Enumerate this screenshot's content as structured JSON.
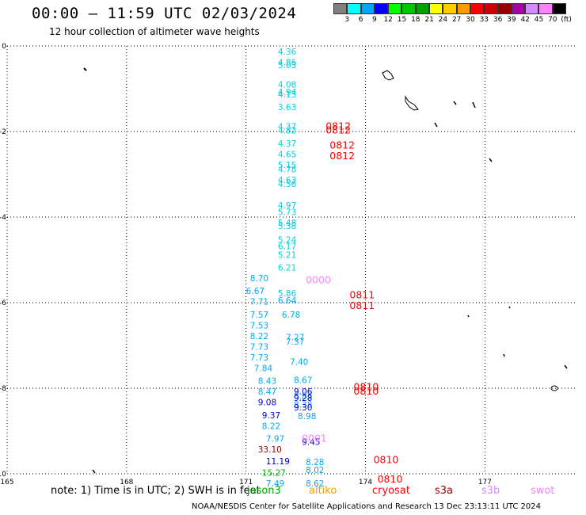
{
  "header": {
    "title": "00:00 – 11:59 UTC 02/03/2024",
    "subtitle": "12 hour collection of altimeter wave heights"
  },
  "color_scale": {
    "colors": [
      "#808080",
      "#00ffff",
      "#00a8ff",
      "#0000ff",
      "#00ff00",
      "#00c800",
      "#00a000",
      "#ffff00",
      "#ffcc00",
      "#ff9900",
      "#ff0000",
      "#cc0000",
      "#990000",
      "#aa00aa",
      "#d28cff",
      "#ff80ff",
      "#000000"
    ],
    "labels": [
      "3",
      "6",
      "9",
      "12",
      "15",
      "18",
      "21",
      "24",
      "27",
      "30",
      "33",
      "36",
      "39",
      "42",
      "45",
      "70",
      "(ft)"
    ]
  },
  "axes": {
    "x_ticks": [
      "165",
      "168",
      "171",
      "174",
      "177"
    ],
    "y_ticks": [
      "0",
      "-2",
      "-4",
      "-6",
      "-8",
      "-10"
    ]
  },
  "chart_data": {
    "type": "scatter",
    "x_range": [
      165,
      179.3
    ],
    "y_range": [
      -10,
      0
    ],
    "points": [
      {
        "lon": 171.8,
        "lat": -0.2,
        "label": "4.36",
        "color": "#00d0e0"
      },
      {
        "lon": 171.8,
        "lat": -0.45,
        "label": "4.86",
        "color": "#00d0e0"
      },
      {
        "lon": 171.8,
        "lat": -0.52,
        "label": "5.03",
        "color": "#00d0e0"
      },
      {
        "lon": 171.8,
        "lat": -0.97,
        "label": "4.08",
        "color": "#00d0e0"
      },
      {
        "lon": 171.8,
        "lat": -1.15,
        "label": "4.94",
        "color": "#00d0e0"
      },
      {
        "lon": 171.8,
        "lat": -1.2,
        "label": "4.13",
        "color": "#00d0e0"
      },
      {
        "lon": 171.8,
        "lat": -1.5,
        "label": "3.63",
        "color": "#00d0e0"
      },
      {
        "lon": 171.8,
        "lat": -1.95,
        "label": "4.37",
        "color": "#00d0e0"
      },
      {
        "lon": 171.8,
        "lat": -2.05,
        "label": "4.82",
        "color": "#00d0e0"
      },
      {
        "lon": 171.8,
        "lat": -2.35,
        "label": "4.37",
        "color": "#00d0e0"
      },
      {
        "lon": 171.8,
        "lat": -2.6,
        "label": "4.65",
        "color": "#00d0e0"
      },
      {
        "lon": 171.8,
        "lat": -2.85,
        "label": "5.15",
        "color": "#00d0e0"
      },
      {
        "lon": 171.8,
        "lat": -2.95,
        "label": "4.78",
        "color": "#00d0e0"
      },
      {
        "lon": 171.8,
        "lat": -3.2,
        "label": "4.63",
        "color": "#00d0e0"
      },
      {
        "lon": 171.8,
        "lat": -3.3,
        "label": "4.56",
        "color": "#00d0e0"
      },
      {
        "lon": 171.8,
        "lat": -3.8,
        "label": "4.97",
        "color": "#00d0e0"
      },
      {
        "lon": 171.8,
        "lat": -3.95,
        "label": "5.73",
        "color": "#00d0e0"
      },
      {
        "lon": 171.8,
        "lat": -4.2,
        "label": "5.48",
        "color": "#00d0e0"
      },
      {
        "lon": 171.8,
        "lat": -4.28,
        "label": "5.38",
        "color": "#00d0e0"
      },
      {
        "lon": 171.8,
        "lat": -4.6,
        "label": "5.24",
        "color": "#00d0e0"
      },
      {
        "lon": 171.8,
        "lat": -4.75,
        "label": "6.17",
        "color": "#00d0e0"
      },
      {
        "lon": 171.8,
        "lat": -4.95,
        "label": "5.21",
        "color": "#00d0e0"
      },
      {
        "lon": 171.8,
        "lat": -5.25,
        "label": "6.21",
        "color": "#00d0e0"
      },
      {
        "lon": 171.1,
        "lat": -5.5,
        "label": "8.70",
        "color": "#00a8ff"
      },
      {
        "lon": 171.0,
        "lat": -5.8,
        "label": "6.67",
        "color": "#00a8ff"
      },
      {
        "lon": 171.8,
        "lat": -5.85,
        "label": "5.86",
        "color": "#00d0e0"
      },
      {
        "lon": 171.8,
        "lat": -6.02,
        "label": "6.64",
        "color": "#00a8ff"
      },
      {
        "lon": 171.1,
        "lat": -6.05,
        "label": "7.71",
        "color": "#00a8ff"
      },
      {
        "lon": 171.1,
        "lat": -6.35,
        "label": "7.57",
        "color": "#00a8ff"
      },
      {
        "lon": 171.9,
        "lat": -6.35,
        "label": "6.78",
        "color": "#00a8ff"
      },
      {
        "lon": 171.1,
        "lat": -6.6,
        "label": "7.53",
        "color": "#00a8ff"
      },
      {
        "lon": 171.1,
        "lat": -6.85,
        "label": "8.22",
        "color": "#00a8ff"
      },
      {
        "lon": 172.0,
        "lat": -6.88,
        "label": "7.27",
        "color": "#00a8ff"
      },
      {
        "lon": 172.0,
        "lat": -6.98,
        "label": "7.37",
        "color": "#00a8ff"
      },
      {
        "lon": 171.1,
        "lat": -7.1,
        "label": "7.73",
        "color": "#00a8ff"
      },
      {
        "lon": 171.1,
        "lat": -7.35,
        "label": "7.73",
        "color": "#00a8ff"
      },
      {
        "lon": 172.1,
        "lat": -7.45,
        "label": "7.40",
        "color": "#00a8ff"
      },
      {
        "lon": 171.2,
        "lat": -7.6,
        "label": "7.84",
        "color": "#00a8ff"
      },
      {
        "lon": 171.3,
        "lat": -7.9,
        "label": "8.43",
        "color": "#00a8ff"
      },
      {
        "lon": 172.2,
        "lat": -7.88,
        "label": "8.67",
        "color": "#00a8ff"
      },
      {
        "lon": 171.3,
        "lat": -8.15,
        "label": "8.47",
        "color": "#00a8ff"
      },
      {
        "lon": 172.2,
        "lat": -8.15,
        "label": "9.06",
        "color": "#0000cc"
      },
      {
        "lon": 172.2,
        "lat": -8.25,
        "label": "8.85",
        "color": "#00a8ff"
      },
      {
        "lon": 172.2,
        "lat": -8.3,
        "label": "9.28",
        "color": "#0000cc"
      },
      {
        "lon": 171.3,
        "lat": -8.4,
        "label": "9.08",
        "color": "#0000cc"
      },
      {
        "lon": 172.2,
        "lat": -8.45,
        "label": "8.38",
        "color": "#00a8ff"
      },
      {
        "lon": 172.2,
        "lat": -8.52,
        "label": "9.30",
        "color": "#0000cc"
      },
      {
        "lon": 171.4,
        "lat": -8.7,
        "label": "9.37",
        "color": "#0000cc"
      },
      {
        "lon": 172.3,
        "lat": -8.72,
        "label": "8.98",
        "color": "#00a8ff"
      },
      {
        "lon": 171.4,
        "lat": -8.95,
        "label": "8.22",
        "color": "#00a8ff"
      },
      {
        "lon": 171.5,
        "lat": -9.25,
        "label": "7.97",
        "color": "#00a8ff"
      },
      {
        "lon": 172.4,
        "lat": -9.32,
        "label": "9.45",
        "color": "#0000cc"
      },
      {
        "lon": 171.3,
        "lat": -9.5,
        "label": "33.10",
        "color": "#990000"
      },
      {
        "lon": 171.5,
        "lat": -9.78,
        "label": "11.19",
        "color": "#0000cc"
      },
      {
        "lon": 172.5,
        "lat": -9.8,
        "label": "8.28",
        "color": "#00a8ff"
      },
      {
        "lon": 171.4,
        "lat": -10.05,
        "label": "15.27",
        "color": "#00b400"
      },
      {
        "lon": 172.5,
        "lat": -9.98,
        "label": "8.02",
        "color": "#00a8ff"
      },
      {
        "lon": 171.5,
        "lat": -10.3,
        "label": "7.49",
        "color": "#00a8ff"
      },
      {
        "lon": 172.5,
        "lat": -10.3,
        "label": "8.62",
        "color": "#00a8ff"
      }
    ],
    "pass_labels": [
      {
        "lon": 173.0,
        "lat": -1.95,
        "label": "0812",
        "color": "#ff0000"
      },
      {
        "lon": 173.0,
        "lat": -2.05,
        "label": "0812",
        "color": "#ff0000"
      },
      {
        "lon": 173.1,
        "lat": -2.4,
        "label": "0812",
        "color": "#ff0000"
      },
      {
        "lon": 173.1,
        "lat": -2.65,
        "label": "0812",
        "color": "#ff0000"
      },
      {
        "lon": 172.5,
        "lat": -5.55,
        "label": "0000",
        "color": "#ff80ff"
      },
      {
        "lon": 173.6,
        "lat": -5.9,
        "label": "0811",
        "color": "#ff0000"
      },
      {
        "lon": 173.6,
        "lat": -6.15,
        "label": "0811",
        "color": "#ff0000"
      },
      {
        "lon": 173.7,
        "lat": -8.05,
        "label": "0810",
        "color": "#ff0000"
      },
      {
        "lon": 173.7,
        "lat": -8.15,
        "label": "0810",
        "color": "#ff0000"
      },
      {
        "lon": 172.4,
        "lat": -9.25,
        "label": "0001",
        "color": "#ff80ff"
      },
      {
        "lon": 174.2,
        "lat": -9.75,
        "label": "0810",
        "color": "#ff0000"
      },
      {
        "lon": 174.3,
        "lat": -10.2,
        "label": "0810",
        "color": "#ff0000"
      }
    ]
  },
  "note": "note: 1) Time is in UTC; 2) SWH is in feet",
  "satellites": [
    {
      "name": "jason3",
      "color": "#00a000"
    },
    {
      "name": "altiko",
      "color": "#ff9900"
    },
    {
      "name": "cryosat",
      "color": "#ff0000"
    },
    {
      "name": "s3a",
      "color": "#990000"
    },
    {
      "name": "s3b",
      "color": "#d28cff"
    },
    {
      "name": "swot",
      "color": "#ff80ff"
    }
  ],
  "footer": "NOAA/NESDIS Center for Satellite Applications and Research   13 Dec 23:13:11 UTC 2024"
}
